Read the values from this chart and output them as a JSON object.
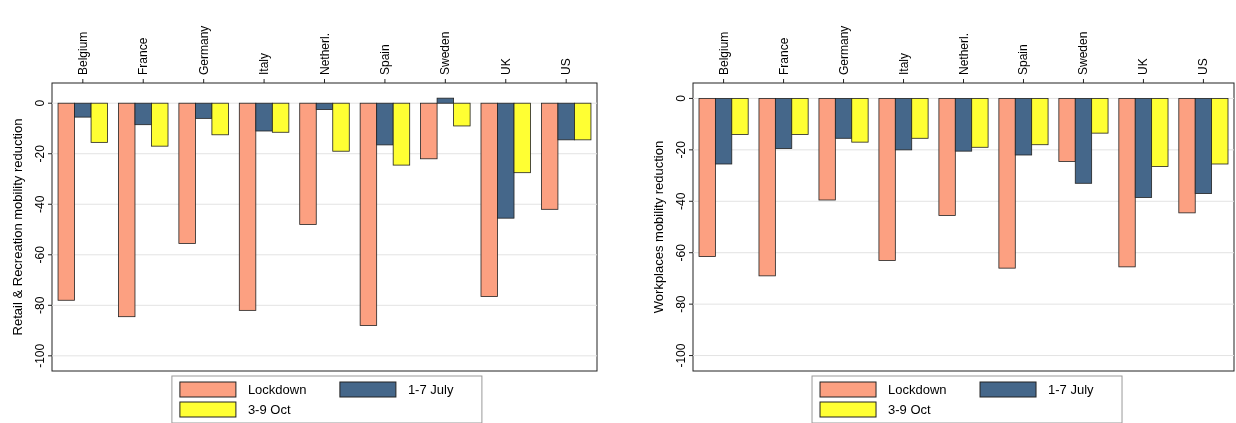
{
  "chart_data": [
    {
      "type": "bar",
      "ylabel": "Retail & Recreation mobility reduction",
      "categories": [
        "Belgium",
        "France",
        "Germany",
        "Italy",
        "Netherl.",
        "Spain",
        "Sweden",
        "UK",
        "US"
      ],
      "series": [
        {
          "name": "Lockdown",
          "color": "#fca081",
          "values": [
            -78,
            -84.5,
            -55.5,
            -82,
            -48,
            -88,
            -22,
            -76.5,
            -42
          ]
        },
        {
          "name": "1-7 July",
          "color": "#45678a",
          "values": [
            -5.5,
            -8.5,
            -6,
            -11,
            -2.5,
            -16.5,
            2,
            -45.5,
            -14.5
          ]
        },
        {
          "name": "3-9 Oct",
          "color": "#ffff33",
          "values": [
            -15.5,
            -17,
            -12.5,
            -11.5,
            -19,
            -24.5,
            -9,
            -27.5,
            -14.5
          ]
        }
      ],
      "ylim": [
        -106,
        8
      ],
      "yticks": [
        -100,
        -80,
        -60,
        -40,
        -20,
        0
      ],
      "grid": "y",
      "legend": "bottom"
    },
    {
      "type": "bar",
      "ylabel": "Workplaces mobility reduction",
      "categories": [
        "Belgium",
        "France",
        "Germany",
        "Italy",
        "Netherl.",
        "Spain",
        "Sweden",
        "UK",
        "US"
      ],
      "series": [
        {
          "name": "Lockdown",
          "color": "#fca081",
          "values": [
            -61.5,
            -69,
            -39.5,
            -63,
            -45.5,
            -66,
            -24.5,
            -65.5,
            -44.5
          ]
        },
        {
          "name": "1-7 July",
          "color": "#45678a",
          "values": [
            -25.5,
            -19.5,
            -15.5,
            -20,
            -20.5,
            -22,
            -33,
            -38.5,
            -37
          ]
        },
        {
          "name": "3-9 Oct",
          "color": "#ffff33",
          "values": [
            -14,
            -14,
            -17,
            -15.5,
            -19,
            -18,
            -13.5,
            -26.5,
            -25.5
          ]
        }
      ],
      "ylim": [
        -106,
        6
      ],
      "yticks": [
        -100,
        -80,
        -60,
        -40,
        -20,
        0
      ],
      "grid": "y",
      "legend": "bottom"
    }
  ]
}
